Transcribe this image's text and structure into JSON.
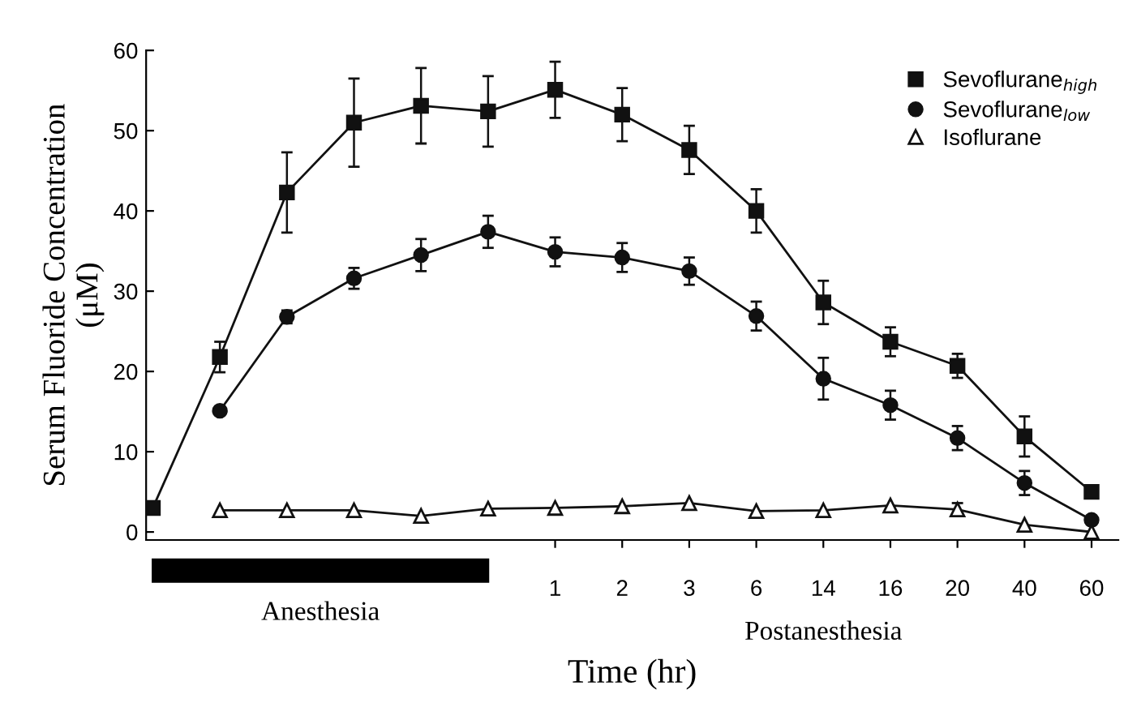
{
  "chart_data": {
    "type": "line",
    "xlabel": "Time (hr)",
    "ylabel": "Serum Fluoride Concentration\n(μM)",
    "categories": [
      null,
      null,
      null,
      null,
      null,
      null,
      "1",
      "2",
      "3",
      "6",
      "14",
      "16",
      "20",
      "40",
      "60"
    ],
    "series": [
      {
        "name": "Sevoflurane$_{high}$",
        "color": "#111111",
        "marker": "square",
        "values": [
          3,
          21.8,
          42.3,
          51,
          53.1,
          52.4,
          55.1,
          52,
          47.6,
          40,
          28.6,
          23.7,
          20.7,
          11.9,
          5
        ],
        "errors": [
          null,
          1.9,
          5,
          5.5,
          4.7,
          4.4,
          3.5,
          3.3,
          3,
          2.7,
          2.7,
          1.8,
          1.5,
          2.5,
          null
        ]
      },
      {
        "name": "Sevoflurane$_{low}$",
        "color": "#111111",
        "marker": "circle",
        "values": [
          null,
          15.1,
          26.8,
          31.6,
          34.5,
          37.4,
          34.9,
          34.2,
          32.5,
          26.9,
          19.1,
          15.8,
          11.7,
          6.1,
          1.5
        ],
        "errors": [
          null,
          null,
          0.8,
          1.3,
          2,
          2,
          1.8,
          1.8,
          1.7,
          1.8,
          2.6,
          1.8,
          1.5,
          1.5,
          null
        ]
      },
      {
        "name": "Isoflurane",
        "color": "#111111",
        "marker": "triangle",
        "values": [
          null,
          2.7,
          2.7,
          2.7,
          2,
          2.9,
          3,
          3.2,
          3.6,
          2.6,
          2.7,
          3.3,
          2.8,
          0.9,
          0
        ],
        "errors": [
          null,
          null,
          null,
          null,
          null,
          null,
          null,
          null,
          null,
          null,
          null,
          null,
          0.8,
          null,
          null
        ]
      }
    ],
    "ylim": [
      -1,
      60
    ],
    "yticks": [
      0,
      10,
      20,
      30,
      40,
      50,
      60
    ],
    "annotations": [
      "Anesthesia",
      "Postanesthesia"
    ],
    "legend": "top right",
    "grid": false,
    "line_style": "solid"
  }
}
